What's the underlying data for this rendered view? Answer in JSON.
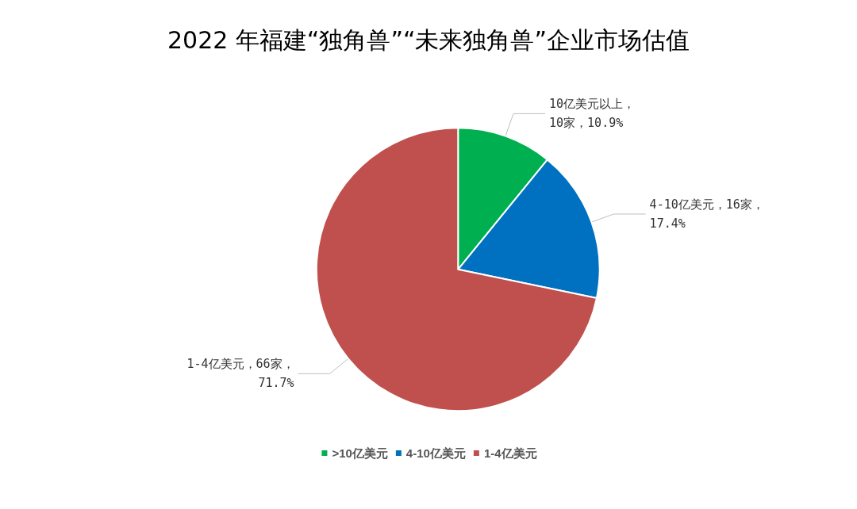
{
  "chart_data": {
    "type": "pie",
    "title": "2022 年福建“独角兽”“未来独角兽”企业市场估值",
    "categories": [
      ">10亿美元",
      "4-10亿美元",
      "1-4亿美元"
    ],
    "values": [
      10,
      16,
      66
    ],
    "colors": [
      "#00b050",
      "#0070c0",
      "#c0504d"
    ],
    "value_labels": [
      "10亿美元以上，\n10家，10.9%",
      "4-10亿美元，16家，\n17.4%",
      "1-4亿美元，66家，\n71.7%"
    ],
    "legend": "bottom"
  }
}
